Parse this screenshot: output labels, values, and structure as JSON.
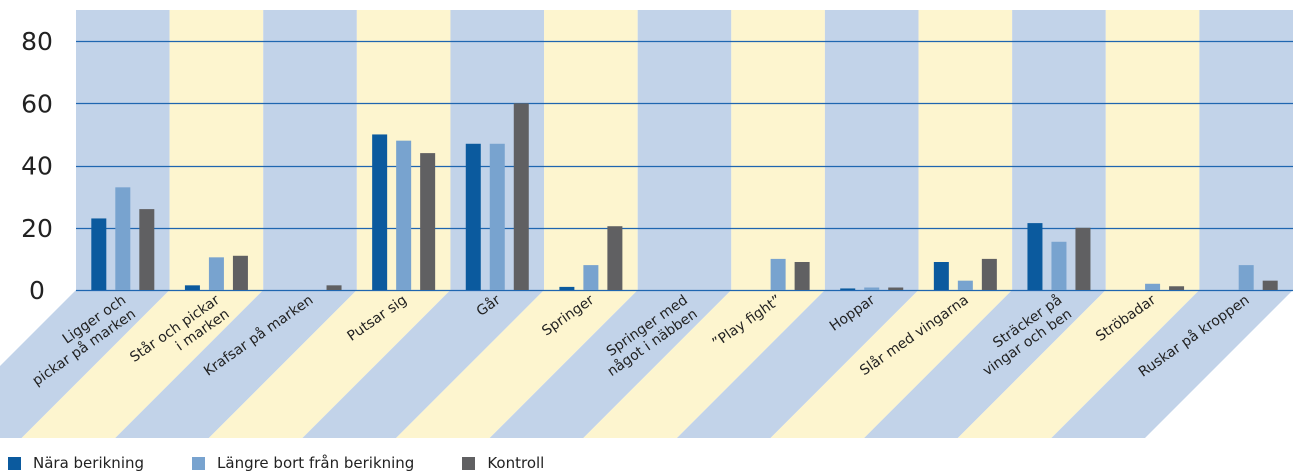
{
  "chart_data": {
    "type": "bar",
    "categories": [
      "Ligger och pickar på marken",
      "Står och pickar i marken",
      "Krafsar på marken",
      "Putsar sig",
      "Går",
      "Springer",
      "Springer med något i näbben",
      "”Play fight”",
      "Hoppar",
      "Slår med vingarna",
      "Sträcker på vingar och ben",
      "Ströbadar",
      "Ruskar på kroppen"
    ],
    "category_lines": [
      [
        "Ligger och",
        "pickar på marken"
      ],
      [
        "Står och pickar",
        "i marken"
      ],
      [
        "Krafsar på marken"
      ],
      [
        "Putsar sig"
      ],
      [
        "Går"
      ],
      [
        "Springer"
      ],
      [
        "Springer med",
        "något i näbben"
      ],
      [
        "”Play fight”"
      ],
      [
        "Hoppar"
      ],
      [
        "Slår med vingarna"
      ],
      [
        "Sträcker på",
        "vingar och ben"
      ],
      [
        "Ströbadar"
      ],
      [
        "Ruskar på kroppen"
      ]
    ],
    "series": [
      {
        "name": "Nära berikning",
        "color": "#0b5a9e",
        "values": [
          23,
          1.5,
          0,
          50,
          47,
          1,
          0,
          0,
          0.5,
          9,
          21.5,
          0,
          0
        ]
      },
      {
        "name": "Längre bort från berikning",
        "color": "#78a3cf",
        "values": [
          33,
          10.5,
          0,
          48,
          47,
          8,
          0,
          10,
          0.8,
          3,
          15.5,
          2,
          8
        ]
      },
      {
        "name": "Kontroll",
        "color": "#606062",
        "values": [
          26,
          11,
          1.5,
          44,
          60,
          20.5,
          0,
          9,
          0.8,
          10,
          20,
          1.2,
          3
        ]
      }
    ],
    "yticks": [
      0,
      20,
      40,
      60,
      80
    ],
    "ylim": [
      0,
      90
    ],
    "band_colors": [
      "#c2d3e9",
      "#fdf5cf"
    ],
    "grid_color": "#1f66b0",
    "grid": true,
    "legend_position": "bottom-left"
  }
}
